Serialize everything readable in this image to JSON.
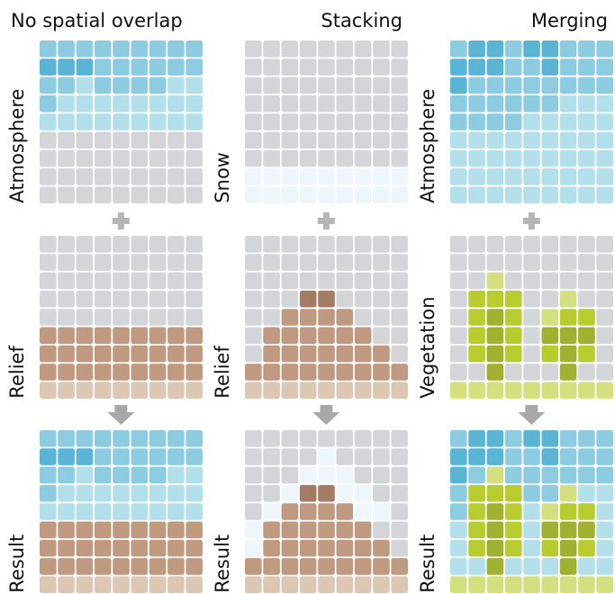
{
  "columns": [
    {
      "title": "No spatial overlap",
      "labels": [
        "Atmosphere",
        "Relief",
        "Result"
      ]
    },
    {
      "title": "Stacking",
      "labels": [
        "Snow",
        "Relief",
        "Result"
      ]
    },
    {
      "title": "Merging",
      "labels": [
        "Atmosphere",
        "Vegetation",
        "Result"
      ]
    }
  ]
}
